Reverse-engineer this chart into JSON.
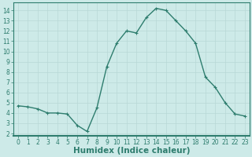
{
  "x": [
    0,
    1,
    2,
    3,
    4,
    5,
    6,
    7,
    8,
    9,
    10,
    11,
    12,
    13,
    14,
    15,
    16,
    17,
    18,
    19,
    20,
    21,
    22,
    23
  ],
  "y": [
    4.7,
    4.6,
    4.4,
    4.0,
    4.0,
    3.9,
    2.8,
    2.2,
    4.5,
    8.5,
    10.8,
    12.0,
    11.8,
    13.3,
    14.2,
    14.0,
    13.0,
    12.0,
    10.8,
    7.5,
    6.5,
    5.0,
    3.9,
    3.7
  ],
  "line_color": "#2e7d6e",
  "bg_color": "#cdeae8",
  "grid_color": "#b8d8d6",
  "xlabel": "Humidex (Indice chaleur)",
  "xlim": [
    -0.5,
    23.5
  ],
  "ylim": [
    1.8,
    14.8
  ],
  "yticks": [
    2,
    3,
    4,
    5,
    6,
    7,
    8,
    9,
    10,
    11,
    12,
    13,
    14
  ],
  "xticks": [
    0,
    1,
    2,
    3,
    4,
    5,
    6,
    7,
    8,
    9,
    10,
    11,
    12,
    13,
    14,
    15,
    16,
    17,
    18,
    19,
    20,
    21,
    22,
    23
  ],
  "marker": "+",
  "markersize": 3.5,
  "linewidth": 1.0,
  "xlabel_fontsize": 7.5,
  "tick_fontsize": 5.5,
  "line_dark": "#1e5c50",
  "bottom_bar_color": "#2e7d6e",
  "bottom_bar_height": 12
}
